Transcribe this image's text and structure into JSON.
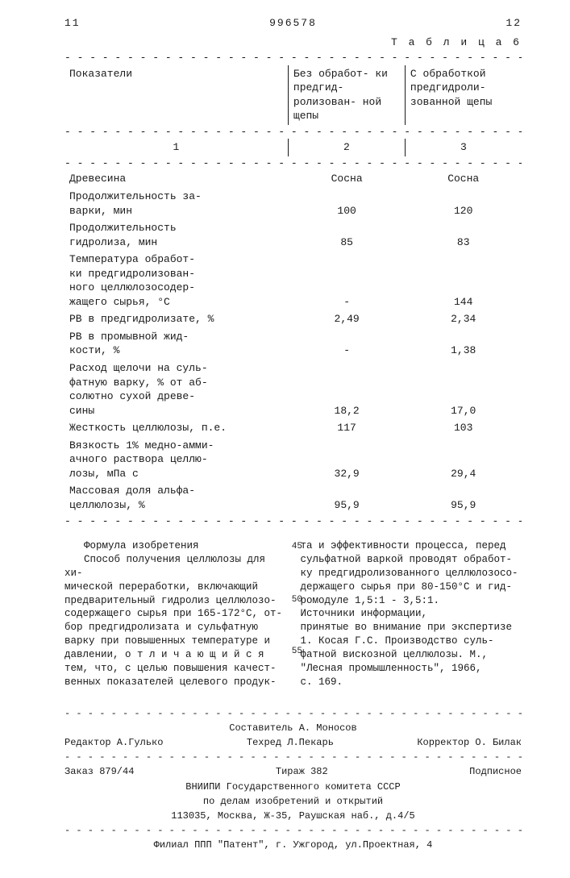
{
  "header": {
    "left_page": "11",
    "right_page": "12",
    "doc_number": "996578",
    "table_caption": "Т а б л и ц а  6"
  },
  "table6": {
    "headers": {
      "c1": "Показатели",
      "c2": "Без обработ-\nки предгид-\nролизован-\nной щепы",
      "c3": "С обработкой\nпредгидроли-\nзованной\nщепы"
    },
    "subheaders": {
      "c1": "1",
      "c2": "2",
      "c3": "3"
    },
    "rows": [
      {
        "label": "Древесина",
        "v2": "Сосна",
        "v3": "Сосна"
      },
      {
        "label": "Продолжительность за-\nварки, мин",
        "v2": "100",
        "v3": "120"
      },
      {
        "label": "Продолжительность\nгидролиза, мин",
        "v2": "85",
        "v3": "83"
      },
      {
        "label": "Температура обработ-\nки предгидролизован-\nного целлюлозосодер-\nжащего сырья, °С",
        "v2": "-",
        "v3": "144"
      },
      {
        "label": "РВ в предгидролизате, %",
        "v2": "2,49",
        "v3": "2,34"
      },
      {
        "label": "РВ в промывной жид-\nкости, %",
        "v2": "-",
        "v3": "1,38"
      },
      {
        "label": "Расход щелочи на суль-\nфатную варку, % от аб-\nсолютно сухой древе-\nсины",
        "v2": "18,2",
        "v3": "17,0"
      },
      {
        "label": "Жесткость целлюлозы, п.е.",
        "v2": "117",
        "v3": "103"
      },
      {
        "label": "Вязкость 1% медно-амми-\nачного раствора целлю-\nлозы, мПа с",
        "v2": "32,9",
        "v3": "29,4"
      },
      {
        "label": "Массовая доля альфа-\nцеллюлозы, %",
        "v2": "95,9",
        "v3": "95,9"
      }
    ]
  },
  "formula_heading": "Формула изобретения",
  "col_left": "Способ получения целлюлозы для хи-\nмической переработки, включающий\nпредварительный гидролиз целлюлозо-\nсодержащего сырья при 165-172°С, от-\nбор предгидролизата и сульфатную\nварку при повышенных температуре и\nдавлении, о т л и ч а ю щ и й с я\nтем, что, с целью повышения качест-\nвенных показателей целевого продук-",
  "col_right": "та и эффективности процесса, перед\nсульфатной варкой проводят обработ-\nку предгидролизованного целлюлозосо-\nдержащего сырья при 80-150°С и гид-\nромодуле 1,5:1 - 3,5:1.\n    Источники информации,\nпринятые во внимание при экспертизе\n    1. Косая Г.С. Производство суль-\nфатной вискозной целлюлозы. М.,\n\"Лесная промышленность\", 1966,\nс. 169.",
  "line_numbers": {
    "l45": "45",
    "l50": "50",
    "l55": "55"
  },
  "footer": {
    "composer": "Составитель А. Моносов",
    "editor": "Редактор А.Гулько",
    "tech": "Техред Л.Пекарь",
    "corrector": "Корректор О. Билак",
    "order": "Заказ 879/44",
    "tirage": "Тираж 382",
    "signed": "Подписное",
    "org1": "ВНИИПИ Государственного комитета СССР",
    "org2": "по делам изобретений и открытий",
    "addr1": "113035, Москва, Ж-35, Раушская наб., д.4/5",
    "addr2": "Филиал ППП \"Патент\", г. Ужгород, ул.Проектная, 4"
  },
  "dashes": "- - - - - - - - - - - - - - - - - - - - - - - - - - - - - - - - - - - - - - - - - - - - - - - - -"
}
